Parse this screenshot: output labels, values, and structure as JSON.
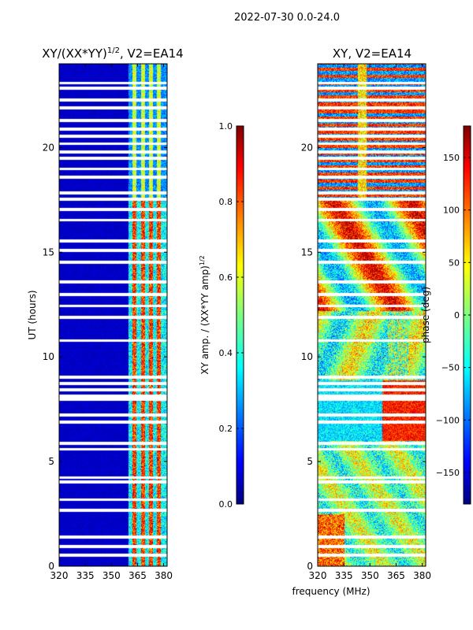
{
  "figure": {
    "suptitle": "2022-07-30 0.0-24.0",
    "xlabel": "frequency (MHz)",
    "left_panel": {
      "title_base": "XY/(XX*YY)",
      "title_sup": "1/2",
      "title_tail": ", V2=EA14",
      "ylabel": "UT (hours)"
    },
    "right_panel": {
      "title": "XY, V2=EA14"
    },
    "left_colorbar": {
      "label_base": "XY amp. / (XX*YY amp)",
      "label_sup": "1/2",
      "ticks": [
        "0.0",
        "0.2",
        "0.4",
        "0.6",
        "0.8",
        "1.0"
      ]
    },
    "right_colorbar": {
      "label": "phase (deg)",
      "ticks": [
        "−150",
        "−100",
        "−50",
        "0",
        "50",
        "100",
        "150"
      ]
    },
    "colors": {
      "colormap": "jet",
      "background": "#ffffff",
      "gap": "#ffffff"
    }
  },
  "chart_data": [
    {
      "type": "heatmap",
      "title": "XY/(XX*YY)^1/2, V2=EA14",
      "xlabel": "frequency (MHz)",
      "ylabel": "UT (hours)",
      "xlim": [
        320,
        382
      ],
      "ylim": [
        0,
        24
      ],
      "x_ticks": [
        320,
        335,
        350,
        365,
        380
      ],
      "y_ticks": [
        0,
        5,
        10,
        15,
        20
      ],
      "colorbar_label": "XY amp. / (XX*YY amp)^1/2",
      "clim": [
        0.0,
        1.0
      ],
      "colormap": "jet",
      "description_of_values": "amplitude near 0.05 below ~360 MHz; 0.3-0.8 between ~360 and 382 MHz with brighter vertical streaks near 363, 368, 372, 377 MHz"
    },
    {
      "type": "heatmap",
      "title": "XY, V2=EA14",
      "xlabel": "frequency (MHz)",
      "ylabel": "",
      "xlim": [
        320,
        382
      ],
      "ylim": [
        0,
        24
      ],
      "x_ticks": [
        320,
        335,
        350,
        365,
        380
      ],
      "y_ticks": [
        0,
        5,
        10,
        15,
        20
      ],
      "colorbar_label": "phase (deg)",
      "clim": [
        -180,
        180
      ],
      "colorbar_ticks": [
        -150,
        -100,
        -50,
        0,
        50,
        100,
        150
      ],
      "colormap": "jet",
      "description_of_values": "noisy phase spanning full range; alternating blue/red bands above 17.5 h, mixed red/yellow 12-17 h, green/cyan 9-12 h and 0-6 h"
    }
  ]
}
